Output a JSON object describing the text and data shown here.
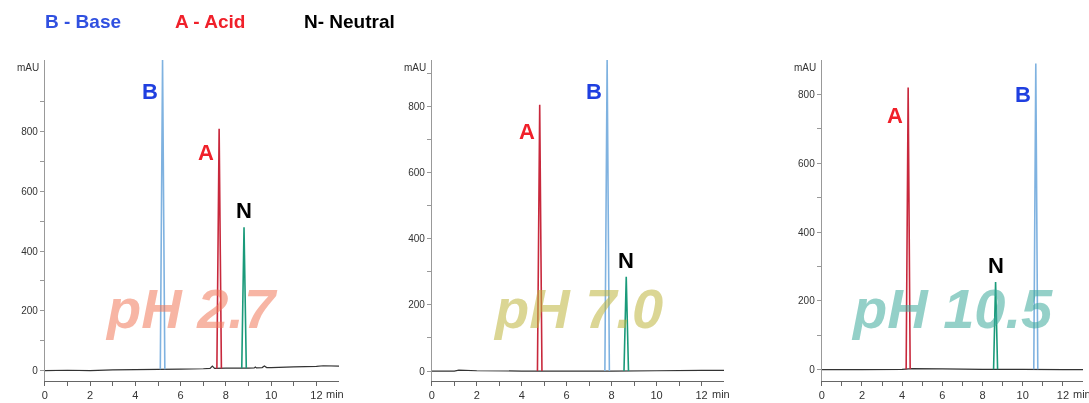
{
  "chart_data": [
    {
      "type": "line",
      "title": "pH 2.7",
      "xlabel": "min",
      "ylabel": "mAU",
      "annotations": [
        "B - Base",
        "A - Acid",
        "N- Neutral"
      ],
      "xlim": [
        0,
        13
      ],
      "ylim": [
        -35,
        1040
      ],
      "xticks": [
        0,
        {
          "value": 1,
          "label": null
        },
        2,
        {
          "value": 3,
          "label": null
        },
        4,
        {
          "value": 5,
          "label": null
        },
        6,
        {
          "value": 7,
          "label": null
        },
        8,
        {
          "value": 9,
          "label": null
        },
        10,
        {
          "value": 11,
          "label": null
        },
        12
      ],
      "yticks": [
        0,
        {
          "value": 100,
          "label": null
        },
        200,
        {
          "value": 300,
          "label": null
        },
        400,
        {
          "value": 500,
          "label": null
        },
        600,
        {
          "value": 700,
          "label": null
        },
        800,
        {
          "value": 900,
          "label": null
        }
      ],
      "series": [
        {
          "color": "#333333",
          "x": [
            0,
            1,
            2,
            3,
            4,
            5,
            6,
            7,
            7.3,
            7.4,
            7.5,
            8,
            9,
            9.25,
            9.3,
            9.35,
            9.6,
            9.7,
            9.8,
            10,
            11,
            12,
            12.3,
            13
          ],
          "values": [
            0,
            1,
            0,
            2,
            3,
            4,
            5,
            6,
            7,
            15,
            7,
            8,
            8,
            9,
            12,
            9,
            10,
            15,
            10,
            10,
            12,
            14,
            16,
            15
          ]
        },
        {
          "name": "B",
          "color": "#7fb2e0",
          "x": [
            5.1,
            5.2,
            5.3
          ],
          "values": [
            4,
            1040,
            4
          ]
        },
        {
          "name": "A",
          "color": "#c8283c",
          "x": [
            7.6,
            7.7,
            7.8
          ],
          "values": [
            7,
            810,
            7
          ]
        },
        {
          "name": "N",
          "color": "#1a9a7a",
          "x": [
            8.7,
            8.8,
            8.9
          ],
          "values": [
            8,
            480,
            8
          ]
        }
      ]
    },
    {
      "type": "line",
      "title": "pH 7.0",
      "xlabel": "min",
      "ylabel": "mAU",
      "xlim": [
        0,
        13
      ],
      "ylim": [
        -30,
        940
      ],
      "xticks": [
        0,
        {
          "value": 1,
          "label": null
        },
        2,
        {
          "value": 3,
          "label": null
        },
        4,
        {
          "value": 5,
          "label": null
        },
        6,
        {
          "value": 7,
          "label": null
        },
        8,
        {
          "value": 9,
          "label": null
        },
        10,
        {
          "value": 11,
          "label": null
        },
        12
      ],
      "yticks": [
        0,
        {
          "value": 100,
          "label": null
        },
        200,
        {
          "value": 300,
          "label": null
        },
        400,
        {
          "value": 500,
          "label": null
        },
        600,
        {
          "value": 700,
          "label": null
        },
        800,
        {
          "value": 900,
          "label": null
        }
      ],
      "series": [
        {
          "color": "#333333",
          "x": [
            0,
            1,
            1.2,
            2,
            4,
            6,
            8,
            10,
            12,
            13
          ],
          "values": [
            0,
            0,
            3,
            1,
            0,
            0,
            0,
            1,
            2,
            2
          ]
        },
        {
          "name": "A",
          "color": "#c8283c",
          "x": [
            4.7,
            4.8,
            4.9
          ],
          "values": [
            0,
            805,
            0
          ]
        },
        {
          "name": "B",
          "color": "#7fb2e0",
          "x": [
            7.7,
            7.8,
            7.9
          ],
          "values": [
            0,
            940,
            0
          ]
        },
        {
          "name": "N",
          "color": "#1a9a7a",
          "x": [
            8.55,
            8.65,
            8.75
          ],
          "values": [
            0,
            285,
            0
          ]
        }
      ]
    },
    {
      "type": "line",
      "title": "pH 10.5",
      "xlabel": "min",
      "ylabel": "mAU",
      "xlim": [
        0,
        13
      ],
      "ylim": [
        -33,
        900
      ],
      "xticks": [
        0,
        {
          "value": 1,
          "label": null
        },
        2,
        {
          "value": 3,
          "label": null
        },
        4,
        {
          "value": 5,
          "label": null
        },
        6,
        {
          "value": 7,
          "label": null
        },
        8,
        {
          "value": 9,
          "label": null
        },
        10,
        {
          "value": 11,
          "label": null
        },
        12
      ],
      "yticks": [
        0,
        {
          "value": 100,
          "label": null
        },
        200,
        {
          "value": 300,
          "label": null
        },
        400,
        {
          "value": 500,
          "label": null
        },
        600,
        {
          "value": 700,
          "label": null
        },
        800
      ],
      "series": [
        {
          "color": "#333333",
          "x": [
            0,
            2,
            4,
            4.5,
            6,
            8,
            10,
            12,
            13
          ],
          "values": [
            0,
            0,
            1,
            3,
            2,
            1,
            1,
            0,
            0
          ]
        },
        {
          "name": "A",
          "color": "#c8283c",
          "x": [
            4.2,
            4.3,
            4.4
          ],
          "values": [
            1,
            820,
            2
          ]
        },
        {
          "name": "N",
          "color": "#1a9a7a",
          "x": [
            8.55,
            8.65,
            8.75
          ],
          "values": [
            1,
            255,
            1
          ]
        },
        {
          "name": "B",
          "color": "#7fb2e0",
          "x": [
            10.55,
            10.65,
            10.75
          ],
          "values": [
            1,
            890,
            1
          ]
        }
      ]
    }
  ]
}
